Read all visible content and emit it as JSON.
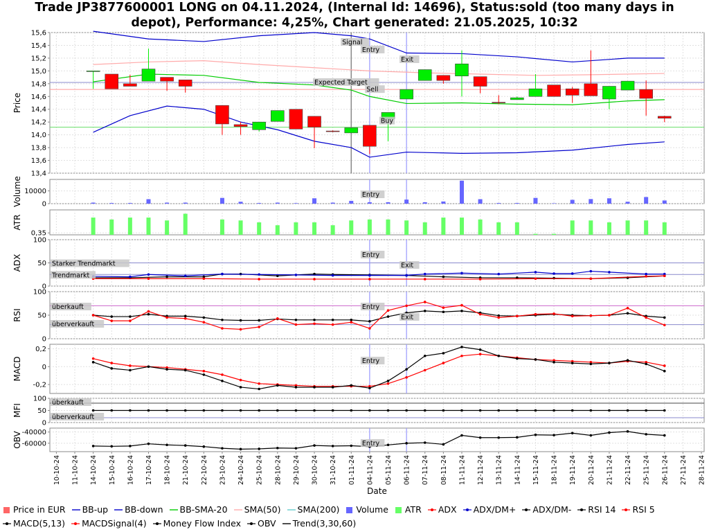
{
  "title_line1": "Trade JP3877600001 LONG on 04.11.2024, (Internal Id: 14696), Status:sold (too many days in",
  "title_line2": "depot), Performance: 4,25%, Chart generated: 21.05.2025, 10:32",
  "chart_data": {
    "type": "candlestick",
    "x_axis_label": "Date",
    "dates": [
      "10-10-24",
      "11-10-24",
      "14-10-24",
      "15-10-24",
      "16-10-24",
      "17-10-24",
      "18-10-24",
      "21-10-24",
      "22-10-24",
      "23-10-24",
      "24-10-24",
      "25-10-24",
      "28-10-24",
      "29-10-24",
      "30-10-24",
      "31-10-24",
      "01-11-24",
      "04-11-24",
      "05-11-24",
      "06-11-24",
      "07-11-24",
      "08-11-24",
      "11-11-24",
      "12-11-24",
      "13-11-24",
      "14-11-24",
      "15-11-24",
      "18-11-24",
      "19-11-24",
      "20-11-24",
      "21-11-24",
      "22-11-24",
      "25-11-24",
      "26-11-24",
      "27-11-24",
      "28-11-24"
    ],
    "candles": [
      {
        "i": 2,
        "o": 15.0,
        "c": 15.0,
        "h": 15.0,
        "l": 14.72
      },
      {
        "i": 3,
        "o": 14.95,
        "c": 14.72,
        "h": 14.95,
        "l": 14.72
      },
      {
        "i": 4,
        "o": 14.8,
        "c": 14.76,
        "h": 14.94,
        "l": 14.76
      },
      {
        "i": 5,
        "o": 14.84,
        "c": 15.03,
        "h": 15.35,
        "l": 14.84
      },
      {
        "i": 6,
        "o": 14.9,
        "c": 14.84,
        "h": 14.9,
        "l": 14.69
      },
      {
        "i": 7,
        "o": 14.86,
        "c": 14.76,
        "h": 14.86,
        "l": 14.66
      },
      {
        "i": 9,
        "o": 14.46,
        "c": 14.17,
        "h": 14.46,
        "l": 14.0
      },
      {
        "i": 10,
        "o": 14.16,
        "c": 14.13,
        "h": 14.2,
        "l": 14.0
      },
      {
        "i": 11,
        "o": 14.08,
        "c": 14.2,
        "h": 14.2,
        "l": 14.05
      },
      {
        "i": 12,
        "o": 14.21,
        "c": 14.38,
        "h": 14.38,
        "l": 14.21
      },
      {
        "i": 13,
        "o": 14.4,
        "c": 14.09,
        "h": 14.4,
        "l": 14.09
      },
      {
        "i": 14,
        "o": 14.29,
        "c": 14.12,
        "h": 14.29,
        "l": 13.79
      },
      {
        "i": 15,
        "o": 14.06,
        "c": 14.05,
        "h": 14.07,
        "l": 14.04
      },
      {
        "i": 16,
        "o": 14.03,
        "c": 14.11,
        "h": 14.11,
        "l": 14.03
      },
      {
        "i": 17,
        "o": 14.15,
        "c": 13.82,
        "h": 14.15,
        "l": 13.7
      },
      {
        "i": 18,
        "o": 14.25,
        "c": 14.35,
        "h": 14.35,
        "l": 13.9
      },
      {
        "i": 19,
        "o": 14.56,
        "c": 14.71,
        "h": 14.71,
        "l": 14.56
      },
      {
        "i": 20,
        "o": 14.85,
        "c": 15.02,
        "h": 15.02,
        "l": 14.85
      },
      {
        "i": 21,
        "o": 14.93,
        "c": 14.85,
        "h": 14.93,
        "l": 14.8
      },
      {
        "i": 22,
        "o": 14.92,
        "c": 15.11,
        "h": 15.32,
        "l": 14.6
      },
      {
        "i": 23,
        "o": 14.91,
        "c": 14.76,
        "h": 14.91,
        "l": 14.65
      },
      {
        "i": 24,
        "o": 14.51,
        "c": 14.5,
        "h": 14.62,
        "l": 14.48
      },
      {
        "i": 25,
        "o": 14.55,
        "c": 14.58,
        "h": 14.6,
        "l": 14.55
      },
      {
        "i": 26,
        "o": 14.6,
        "c": 14.72,
        "h": 14.95,
        "l": 14.6
      },
      {
        "i": 27,
        "o": 14.78,
        "c": 14.6,
        "h": 14.78,
        "l": 14.6
      },
      {
        "i": 28,
        "o": 14.72,
        "c": 14.62,
        "h": 14.75,
        "l": 14.5
      },
      {
        "i": 29,
        "o": 14.8,
        "c": 14.61,
        "h": 15.32,
        "l": 14.61
      },
      {
        "i": 30,
        "o": 14.56,
        "c": 14.76,
        "h": 14.76,
        "l": 14.4
      },
      {
        "i": 31,
        "o": 14.7,
        "c": 14.84,
        "h": 14.84,
        "l": 14.7
      },
      {
        "i": 32,
        "o": 14.71,
        "c": 14.57,
        "h": 14.85,
        "l": 14.3
      },
      {
        "i": 33,
        "o": 14.29,
        "c": 14.26,
        "h": 14.3,
        "l": 14.2
      }
    ],
    "bb_up": {
      "x": [
        2,
        5,
        8,
        11,
        14,
        16,
        17,
        19,
        22,
        25,
        28,
        31,
        33
      ],
      "y": [
        15.62,
        15.5,
        15.46,
        15.55,
        15.6,
        15.55,
        15.5,
        15.28,
        15.27,
        15.22,
        15.14,
        15.2,
        15.2
      ]
    },
    "bb_down": {
      "x": [
        2,
        4,
        6,
        8,
        10,
        12,
        14,
        16,
        17,
        19,
        22,
        25,
        28,
        31,
        33
      ],
      "y": [
        14.04,
        14.3,
        14.45,
        14.4,
        14.2,
        14.08,
        13.9,
        13.8,
        13.65,
        13.73,
        13.71,
        13.72,
        13.76,
        13.85,
        13.89
      ]
    },
    "bb_sma20": {
      "x": [
        2,
        5,
        8,
        11,
        14,
        16,
        17,
        19,
        22,
        25,
        28,
        31,
        33
      ],
      "y": [
        14.83,
        14.95,
        14.93,
        14.82,
        14.78,
        14.7,
        14.6,
        14.49,
        14.5,
        14.48,
        14.47,
        14.53,
        14.55
      ]
    },
    "sma50": {
      "x": [
        2,
        5,
        8,
        11,
        14,
        17,
        20,
        23,
        26,
        29,
        33
      ],
      "y": [
        15.1,
        15.14,
        15.16,
        15.1,
        15.05,
        15.0,
        14.97,
        14.95,
        14.93,
        14.94,
        14.96
      ]
    },
    "expected_target": 14.82,
    "sell_level": 14.71,
    "buy_level": 14.12,
    "price_ylim": [
      13.4,
      15.6
    ],
    "price_ticks": [
      "13,4",
      "13,6",
      "13,8",
      "14,0",
      "14,2",
      "14,4",
      "14,6",
      "14,8",
      "15,0",
      "15,2",
      "15,4",
      "15,6"
    ],
    "price_label": "Price",
    "signal_label": "Signal",
    "entry_label": "Entry",
    "exit_label": "Exit",
    "expected_target_label": "Expected Target",
    "sell_label": "Sell",
    "buy_label": "Buy",
    "volume": {
      "label": "Volume",
      "ticks": [
        "0",
        "10000"
      ],
      "ylim": [
        0,
        19000
      ],
      "values": [
        [
          2,
          800
        ],
        [
          3,
          500
        ],
        [
          4,
          500
        ],
        [
          5,
          3500
        ],
        [
          6,
          800
        ],
        [
          7,
          800
        ],
        [
          9,
          4500
        ],
        [
          10,
          1500
        ],
        [
          11,
          500
        ],
        [
          12,
          800
        ],
        [
          13,
          400
        ],
        [
          14,
          4200
        ],
        [
          15,
          800
        ],
        [
          16,
          2200
        ],
        [
          17,
          1100
        ],
        [
          18,
          1100
        ],
        [
          19,
          3200
        ],
        [
          20,
          1100
        ],
        [
          21,
          1700
        ],
        [
          22,
          18000
        ],
        [
          23,
          3500
        ],
        [
          24,
          500
        ],
        [
          25,
          500
        ],
        [
          26,
          4500
        ],
        [
          27,
          300
        ],
        [
          28,
          3000
        ],
        [
          29,
          3600
        ],
        [
          30,
          4200
        ],
        [
          31,
          1500
        ],
        [
          32,
          5200
        ],
        [
          33,
          2500
        ]
      ]
    },
    "atr": {
      "label": "ATR",
      "ticks": [
        "0,35"
      ],
      "ylim": [
        0.34,
        0.47
      ],
      "values": [
        [
          2,
          0.43
        ],
        [
          3,
          0.42
        ],
        [
          4,
          0.43
        ],
        [
          5,
          0.43
        ],
        [
          6,
          0.415
        ],
        [
          7,
          0.45
        ],
        [
          9,
          0.42
        ],
        [
          10,
          0.415
        ],
        [
          11,
          0.405
        ],
        [
          12,
          0.39
        ],
        [
          13,
          0.405
        ],
        [
          14,
          0.405
        ],
        [
          15,
          0.39
        ],
        [
          16,
          0.415
        ],
        [
          17,
          0.42
        ],
        [
          18,
          0.42
        ],
        [
          19,
          0.415
        ],
        [
          20,
          0.405
        ],
        [
          21,
          0.43
        ],
        [
          22,
          0.43
        ],
        [
          23,
          0.42
        ],
        [
          24,
          0.405
        ],
        [
          25,
          0.405
        ],
        [
          26,
          0.345
        ],
        [
          27,
          0.345
        ],
        [
          28,
          0.415
        ],
        [
          29,
          0.415
        ],
        [
          30,
          0.405
        ],
        [
          31,
          0.415
        ],
        [
          32,
          0.415
        ],
        [
          33,
          0.405
        ]
      ]
    },
    "adx": {
      "label": "ADX",
      "ticks": [
        "0",
        "50",
        "100"
      ],
      "ylim": [
        0,
        100
      ],
      "starker": 50,
      "trend": 25,
      "starker_label": "Starker Trendmarkt",
      "trend_label": "Trendmarkt",
      "adx": {
        "x": [
          2,
          5,
          8,
          11,
          14,
          17,
          20,
          23,
          26,
          29,
          32,
          33
        ],
        "y": [
          16,
          16,
          16,
          15,
          15,
          15,
          15,
          15,
          16,
          16,
          21,
          22
        ]
      },
      "dmp": {
        "x": [
          2,
          4,
          5,
          7,
          9,
          11,
          13,
          15,
          17,
          19,
          20,
          22,
          24,
          26,
          27,
          28,
          29,
          30,
          32,
          33
        ],
        "y": [
          21,
          20,
          25,
          22,
          26,
          25,
          24,
          23,
          23,
          23,
          26,
          28,
          26,
          30,
          27,
          27,
          32,
          30,
          26,
          26
        ]
      },
      "dmm": {
        "x": [
          2,
          4,
          6,
          8,
          9,
          10,
          12,
          14,
          15,
          17,
          19,
          21,
          23,
          25,
          27,
          29,
          31,
          33
        ],
        "y": [
          18,
          18,
          20,
          20,
          26,
          26,
          22,
          26,
          25,
          24,
          23,
          20,
          18,
          18,
          17,
          16,
          18,
          22
        ]
      }
    },
    "rsi": {
      "label": "RSI",
      "ticks": [
        "0",
        "50",
        "100"
      ],
      "ylim": [
        0,
        100
      ],
      "over": 70,
      "under": 30,
      "over_label": "überkauft",
      "under_label": "überverkauft",
      "rsi14": {
        "x": [
          2,
          3,
          4,
          5,
          6,
          7,
          8,
          9,
          10,
          11,
          12,
          13,
          14,
          15,
          16,
          17,
          18,
          19,
          20,
          21,
          22,
          23,
          24,
          25,
          26,
          27,
          28,
          29,
          30,
          31,
          32,
          33
        ],
        "y": [
          50,
          47,
          47,
          52,
          48,
          48,
          45,
          40,
          39,
          39,
          42,
          40,
          40,
          40,
          40,
          37,
          47,
          55,
          59,
          57,
          59,
          55,
          49,
          48,
          50,
          52,
          50,
          49,
          50,
          54,
          48,
          45
        ]
      },
      "rsi5": {
        "x": [
          2,
          3,
          4,
          5,
          6,
          7,
          8,
          9,
          10,
          11,
          12,
          13,
          14,
          15,
          16,
          17,
          18,
          19,
          20,
          21,
          22,
          23,
          24,
          25,
          26,
          27,
          28,
          29,
          30,
          31,
          32,
          33
        ],
        "y": [
          50,
          38,
          38,
          58,
          45,
          43,
          35,
          22,
          20,
          25,
          43,
          30,
          32,
          30,
          35,
          22,
          60,
          70,
          78,
          66,
          71,
          52,
          45,
          48,
          52,
          53,
          48,
          49,
          50,
          65,
          45,
          29
        ]
      }
    },
    "macd": {
      "label": "MACD",
      "ticks": [
        "-0,2",
        "0",
        "0,2"
      ],
      "ylim": [
        -0.3,
        0.25
      ],
      "macd": {
        "x": [
          2,
          3,
          4,
          5,
          6,
          7,
          8,
          9,
          10,
          11,
          12,
          13,
          14,
          15,
          16,
          17,
          18,
          19,
          20,
          21,
          22,
          23,
          24,
          25,
          26,
          27,
          28,
          29,
          30,
          31,
          32,
          33
        ],
        "y": [
          0.05,
          -0.02,
          -0.04,
          0.0,
          -0.03,
          -0.04,
          -0.09,
          -0.16,
          -0.23,
          -0.25,
          -0.21,
          -0.23,
          -0.23,
          -0.23,
          -0.21,
          -0.24,
          -0.16,
          -0.03,
          0.12,
          0.15,
          0.22,
          0.19,
          0.12,
          0.09,
          0.08,
          0.05,
          0.04,
          0.03,
          0.04,
          0.07,
          0.03,
          -0.05
        ]
      },
      "signal": {
        "x": [
          2,
          3,
          4,
          5,
          6,
          7,
          8,
          9,
          10,
          11,
          12,
          13,
          14,
          15,
          16,
          17,
          18,
          19,
          20,
          21,
          22,
          23,
          24,
          25,
          26,
          27,
          28,
          29,
          30,
          31,
          32,
          33
        ],
        "y": [
          0.09,
          0.04,
          0.01,
          0.0,
          -0.01,
          -0.03,
          -0.05,
          -0.09,
          -0.15,
          -0.19,
          -0.2,
          -0.21,
          -0.22,
          -0.22,
          -0.22,
          -0.22,
          -0.19,
          -0.12,
          -0.04,
          0.04,
          0.12,
          0.14,
          0.12,
          0.1,
          0.08,
          0.07,
          0.06,
          0.05,
          0.04,
          0.06,
          0.05,
          0.01
        ]
      }
    },
    "mfi": {
      "label": "MFI",
      "ticks": [
        "0",
        "50",
        "100"
      ],
      "ylim": [
        0,
        100
      ],
      "over": 80,
      "under": 20,
      "over_label": "überkauft",
      "under_label": "überverkauft",
      "value": 50
    },
    "obv": {
      "label": "OBV",
      "ticks": [
        "-60000",
        "-40000"
      ],
      "ylim": [
        -75000,
        -33000
      ],
      "values": {
        "x": [
          2,
          3,
          4,
          5,
          6,
          7,
          8,
          9,
          10,
          11,
          12,
          13,
          14,
          15,
          16,
          17,
          18,
          19,
          20,
          21,
          22,
          23,
          24,
          25,
          26,
          27,
          28,
          29,
          30,
          31,
          32,
          33
        ],
        "y": [
          -65000,
          -65500,
          -65000,
          -61000,
          -63000,
          -64000,
          -66000,
          -69000,
          -70500,
          -70000,
          -68500,
          -69000,
          -64000,
          -65000,
          -64500,
          -66000,
          -63000,
          -60000,
          -59000,
          -62000,
          -46000,
          -50000,
          -50000,
          -49500,
          -45000,
          -45500,
          -42000,
          -46000,
          -41000,
          -39000,
          -44000,
          -46000
        ]
      }
    },
    "entry_index": 17,
    "exit_index": 19,
    "signal_index": 16
  },
  "legend": [
    {
      "label": "Price in EUR",
      "color": "#ff6666",
      "kind": "box"
    },
    {
      "label": "BB-up",
      "color": "#0000cc",
      "kind": "line"
    },
    {
      "label": "BB-down",
      "color": "#0000cc",
      "kind": "line"
    },
    {
      "label": "BB-SMA-20",
      "color": "#00cc00",
      "kind": "line"
    },
    {
      "label": "SMA(50)",
      "color": "#ffaaaa",
      "kind": "line"
    },
    {
      "label": "SMA(200)",
      "color": "#66cccc",
      "kind": "line"
    },
    {
      "label": "Volume",
      "color": "#6666ff",
      "kind": "box"
    },
    {
      "label": "ATR",
      "color": "#66ff66",
      "kind": "box"
    },
    {
      "label": "ADX",
      "color": "#ff0000",
      "kind": "dotline"
    },
    {
      "label": "ADX/DM+",
      "color": "#0000cc",
      "kind": "dotline"
    },
    {
      "label": "ADX/DM-",
      "color": "#000000",
      "kind": "dotline"
    },
    {
      "label": "RSI 14",
      "color": "#000000",
      "kind": "dotline"
    },
    {
      "label": "RSI 5",
      "color": "#ff0000",
      "kind": "dotline"
    },
    {
      "label": "MACD(5,13)",
      "color": "#000000",
      "kind": "dotline"
    },
    {
      "label": "MACDSignal(4)",
      "color": "#ff0000",
      "kind": "dotline"
    },
    {
      "label": "Money Flow Index",
      "color": "#000000",
      "kind": "dotline"
    },
    {
      "label": "OBV",
      "color": "#000000",
      "kind": "dotline"
    },
    {
      "label": "Trend(3,30,60)",
      "color": "#000000",
      "kind": "line"
    }
  ]
}
